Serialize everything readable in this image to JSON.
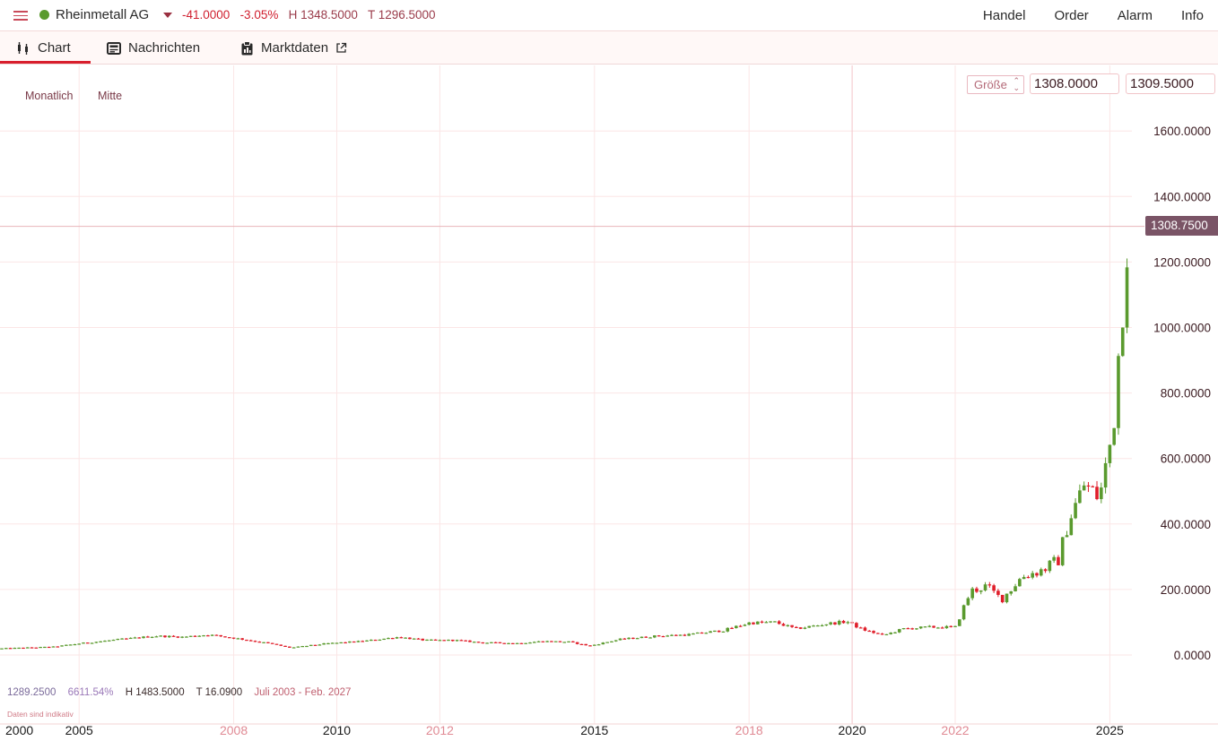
{
  "header": {
    "instrument": "Rheinmetall AG",
    "status_color": "#5a9a2e",
    "change_abs": "-41.0000",
    "change_pct": "-3.05%",
    "high": "H 1348.5000",
    "low": "T 1296.5000",
    "nav": [
      "Handel",
      "Order",
      "Alarm",
      "Info"
    ]
  },
  "tabs": [
    {
      "label": "Chart",
      "icon": "candlestick-icon"
    },
    {
      "label": "Nachrichten",
      "icon": "news-icon"
    },
    {
      "label": "Marktdaten",
      "icon": "clipboard-icon"
    }
  ],
  "chart_options": {
    "interval": "Monatlich",
    "price_type": "Mitte",
    "size_label": "Größe",
    "bid": "1308.0000",
    "ask": "1309.5000",
    "current_price_label": "1308.7500"
  },
  "footer": {
    "price": "1289.2500",
    "performance": "6611.54%",
    "high": "H 1483.5000",
    "low": "T 16.0900",
    "range": "Juli 2003 - Feb. 2027",
    "disclaimer": "Daten sind indikativ"
  },
  "colors": {
    "up": "#5a9a2e",
    "down": "#e01e2a",
    "accent": "#d81e2c",
    "price_label_bg": "#7a5466"
  },
  "chart_data": {
    "type": "candlestick",
    "interval": "monthly",
    "y_ticks": [
      0,
      200,
      400,
      600,
      800,
      1000,
      1200,
      1400,
      1600
    ],
    "y_tick_labels": [
      "0.0000",
      "200.0000",
      "400.0000",
      "600.0000",
      "800.0000",
      "1000.0000",
      "1200.0000",
      "1400.0000",
      "1600.0000"
    ],
    "ylim": [
      -40,
      1600
    ],
    "x_ticks": [
      {
        "label": "2000",
        "year": 2000,
        "bold": true
      },
      {
        "label": "2005",
        "year": 2005,
        "bold": true
      },
      {
        "label": "2008",
        "year": 2008,
        "bold": false
      },
      {
        "label": "2010",
        "year": 2010,
        "bold": true
      },
      {
        "label": "2012",
        "year": 2012,
        "bold": false
      },
      {
        "label": "2015",
        "year": 2015,
        "bold": true
      },
      {
        "label": "2018",
        "year": 2018,
        "bold": false
      },
      {
        "label": "2020",
        "year": 2020,
        "bold": true
      },
      {
        "label": "2022",
        "year": 2022,
        "bold": false
      },
      {
        "label": "2025",
        "year": 2025,
        "bold": true
      }
    ],
    "current_price": 1308.75,
    "grid": true,
    "anchors": [
      [
        2003.5,
        20
      ],
      [
        2004.5,
        25
      ],
      [
        2005.0,
        35
      ],
      [
        2005.8,
        48
      ],
      [
        2006.5,
        58
      ],
      [
        2007.0,
        55
      ],
      [
        2007.5,
        62
      ],
      [
        2008.0,
        52
      ],
      [
        2008.7,
        35
      ],
      [
        2009.1,
        22
      ],
      [
        2009.8,
        35
      ],
      [
        2010.5,
        42
      ],
      [
        2011.2,
        55
      ],
      [
        2011.7,
        45
      ],
      [
        2012.3,
        45
      ],
      [
        2012.8,
        38
      ],
      [
        2013.5,
        36
      ],
      [
        2014.0,
        42
      ],
      [
        2014.5,
        40
      ],
      [
        2014.9,
        28
      ],
      [
        2015.5,
        48
      ],
      [
        2016.2,
        58
      ],
      [
        2016.8,
        62
      ],
      [
        2017.5,
        75
      ],
      [
        2018.0,
        98
      ],
      [
        2018.5,
        100
      ],
      [
        2018.9,
        80
      ],
      [
        2019.5,
        95
      ],
      [
        2019.9,
        102
      ],
      [
        2020.2,
        78
      ],
      [
        2020.6,
        60
      ],
      [
        2021.0,
        80
      ],
      [
        2021.5,
        85
      ],
      [
        2022.0,
        85
      ],
      [
        2022.3,
        195
      ],
      [
        2022.6,
        210
      ],
      [
        2022.9,
        170
      ],
      [
        2023.3,
        240
      ],
      [
        2023.7,
        260
      ],
      [
        2024.0,
        290
      ],
      [
        2024.2,
        410
      ],
      [
        2024.5,
        520
      ],
      [
        2024.8,
        480
      ],
      [
        2025.0,
        640
      ],
      [
        2025.1,
        750
      ],
      [
        2025.2,
        1000
      ],
      [
        2025.3,
        1150
      ],
      [
        2025.35,
        1310
      ]
    ]
  }
}
